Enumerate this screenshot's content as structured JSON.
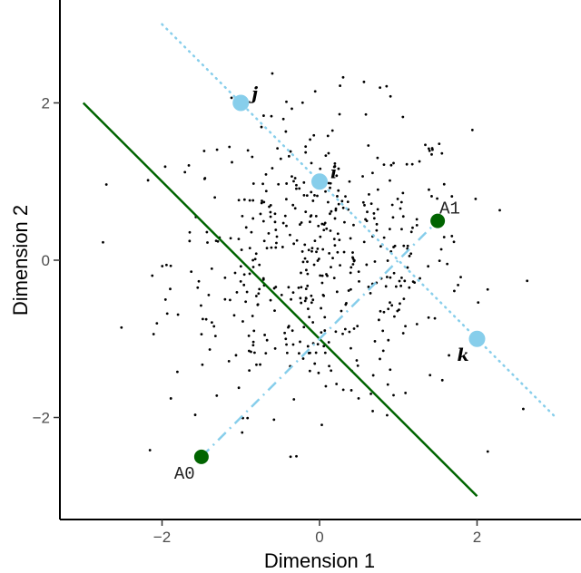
{
  "chart_data": {
    "type": "scatter",
    "xlabel": "Dimension 1",
    "ylabel": "Dimension 2",
    "xlim": [
      -3.3,
      3.3
    ],
    "ylim": [
      -3.3,
      3.3
    ],
    "x_ticks": [
      {
        "v": -2,
        "label": "−2"
      },
      {
        "v": 0,
        "label": "0"
      },
      {
        "v": 2,
        "label": "2"
      }
    ],
    "y_ticks": [
      {
        "v": -2,
        "label": "−2"
      },
      {
        "v": 0,
        "label": "0"
      },
      {
        "v": 2,
        "label": "2"
      }
    ],
    "grid": false,
    "background_points": {
      "color": "#000000",
      "distribution": "bivariate normal cloud centered at origin"
    },
    "highlight_points": [
      {
        "label": "j",
        "x": -1,
        "y": 2,
        "color": "#87CEEB"
      },
      {
        "label": "i",
        "x": 0,
        "y": 1,
        "color": "#87CEEB"
      },
      {
        "label": "k",
        "x": 2,
        "y": -1,
        "color": "#87CEEB"
      }
    ],
    "anchor_points": [
      {
        "label": "A0",
        "x": -1.5,
        "y": -2.5,
        "color": "#006400"
      },
      {
        "label": "A1",
        "x": 1.5,
        "y": 0.5,
        "color": "#006400"
      }
    ],
    "lines": [
      {
        "style": "solid",
        "color": "#006400",
        "from": [
          -3,
          2
        ],
        "to": [
          2,
          -3
        ]
      },
      {
        "style": "dotted",
        "color": "#87CEEB",
        "from": [
          -2,
          3
        ],
        "to": [
          3,
          -2
        ]
      },
      {
        "style": "dashdot",
        "color": "#87CEEB",
        "from": [
          -1.5,
          -2.5
        ],
        "to": [
          1.5,
          0.5
        ]
      }
    ]
  }
}
